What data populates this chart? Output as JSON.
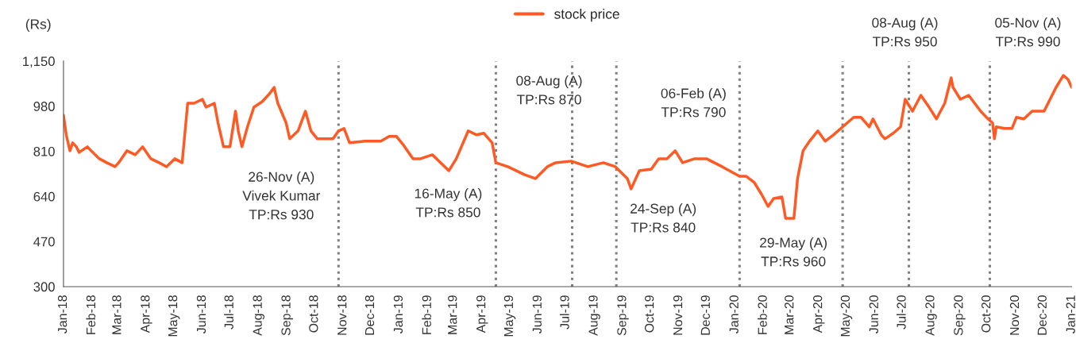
{
  "chart_data": {
    "type": "line",
    "ylabel": "(Rs)",
    "legend": "top",
    "grid": false,
    "line_style": "solid",
    "marker": "none",
    "xlim": [
      "2018-01-01",
      "2021-01-01"
    ],
    "xticks": [
      {
        "value": "2018-01-01",
        "label": "Jan-18"
      },
      {
        "value": "2018-02-01",
        "label": "Feb-18"
      },
      {
        "value": "2018-03-01",
        "label": "Mar-18"
      },
      {
        "value": "2018-04-01",
        "label": "Apr-18"
      },
      {
        "value": "2018-05-01",
        "label": "May-18"
      },
      {
        "value": "2018-06-01",
        "label": "Jun-18"
      },
      {
        "value": "2018-07-01",
        "label": "Jul-18"
      },
      {
        "value": "2018-08-01",
        "label": "Aug-18"
      },
      {
        "value": "2018-09-01",
        "label": "Sep-18"
      },
      {
        "value": "2018-10-01",
        "label": "Oct-18"
      },
      {
        "value": "2018-11-01",
        "label": "Nov-18"
      },
      {
        "value": "2018-12-01",
        "label": "Dec-18"
      },
      {
        "value": "2019-01-01",
        "label": "Jan-19"
      },
      {
        "value": "2019-02-01",
        "label": "Feb-19"
      },
      {
        "value": "2019-03-01",
        "label": "Mar-19"
      },
      {
        "value": "2019-04-01",
        "label": "Apr-19"
      },
      {
        "value": "2019-05-01",
        "label": "May-19"
      },
      {
        "value": "2019-06-01",
        "label": "Jun-19"
      },
      {
        "value": "2019-07-01",
        "label": "Jul-19"
      },
      {
        "value": "2019-08-01",
        "label": "Aug-19"
      },
      {
        "value": "2019-09-01",
        "label": "Sep-19"
      },
      {
        "value": "2019-10-01",
        "label": "Oct-19"
      },
      {
        "value": "2019-11-01",
        "label": "Nov-19"
      },
      {
        "value": "2019-12-01",
        "label": "Dec-19"
      },
      {
        "value": "2020-01-01",
        "label": "Jan-20"
      },
      {
        "value": "2020-02-01",
        "label": "Feb-20"
      },
      {
        "value": "2020-03-01",
        "label": "Mar-20"
      },
      {
        "value": "2020-04-01",
        "label": "Apr-20"
      },
      {
        "value": "2020-05-01",
        "label": "May-20"
      },
      {
        "value": "2020-06-01",
        "label": "Jun-20"
      },
      {
        "value": "2020-07-01",
        "label": "Jul-20"
      },
      {
        "value": "2020-08-01",
        "label": "Aug-20"
      },
      {
        "value": "2020-09-01",
        "label": "Sep-20"
      },
      {
        "value": "2020-10-01",
        "label": "Oct-20"
      },
      {
        "value": "2020-11-01",
        "label": "Nov-20"
      },
      {
        "value": "2020-12-01",
        "label": "Dec-20"
      },
      {
        "value": "2021-01-01",
        "label": "Jan-21"
      }
    ],
    "ylim": [
      300,
      1150
    ],
    "yticks": [
      300,
      470,
      640,
      810,
      980,
      {
        "value": 1150,
        "label": "1,150"
      }
    ],
    "series": [
      {
        "name": "stock price",
        "color": "#ff5a24",
        "x": [
          "2018-01-01",
          "2018-01-04",
          "2018-01-08",
          "2018-01-11",
          "2018-01-15",
          "2018-01-18",
          "2018-01-27",
          "2018-01-31",
          "2018-02-09",
          "2018-02-17",
          "2018-02-26",
          "2018-03-02",
          "2018-03-11",
          "2018-03-20",
          "2018-03-28",
          "2018-04-06",
          "2018-04-15",
          "2018-04-23",
          "2018-05-02",
          "2018-05-10",
          "2018-05-16",
          "2018-05-23",
          "2018-06-01",
          "2018-06-05",
          "2018-06-14",
          "2018-06-18",
          "2018-06-24",
          "2018-07-01",
          "2018-07-07",
          "2018-07-10",
          "2018-07-14",
          "2018-07-20",
          "2018-07-27",
          "2018-08-05",
          "2018-08-13",
          "2018-08-18",
          "2018-08-22",
          "2018-08-31",
          "2018-09-04",
          "2018-09-13",
          "2018-09-21",
          "2018-09-27",
          "2018-10-04",
          "2018-10-21",
          "2018-10-27",
          "2018-11-02",
          "2018-11-08",
          "2018-11-25",
          "2018-12-12",
          "2018-12-21",
          "2018-12-29",
          "2019-01-05",
          "2019-01-16",
          "2019-01-24",
          "2019-02-06",
          "2019-02-15",
          "2019-02-24",
          "2019-03-04",
          "2019-03-17",
          "2019-03-26",
          "2019-04-03",
          "2019-04-12",
          "2019-04-16",
          "2019-04-29",
          "2019-05-17",
          "2019-05-29",
          "2019-06-11",
          "2019-06-20",
          "2019-07-07",
          "2019-07-25",
          "2019-08-11",
          "2019-08-24",
          "2019-09-06",
          "2019-09-10",
          "2019-09-19",
          "2019-10-02",
          "2019-10-10",
          "2019-10-19",
          "2019-10-28",
          "2019-11-05",
          "2019-11-18",
          "2019-12-01",
          "2019-12-18",
          "2020-01-06",
          "2020-01-13",
          "2020-01-22",
          "2020-01-30",
          "2020-02-06",
          "2020-02-12",
          "2020-02-21",
          "2020-02-25",
          "2020-03-05",
          "2020-03-09",
          "2020-03-15",
          "2020-03-22",
          "2020-03-31",
          "2020-04-08",
          "2020-04-17",
          "2020-04-27",
          "2020-05-09",
          "2020-05-17",
          "2020-05-26",
          "2020-05-30",
          "2020-06-08",
          "2020-06-12",
          "2020-06-21",
          "2020-06-29",
          "2020-07-04",
          "2020-07-12",
          "2020-07-21",
          "2020-07-30",
          "2020-08-07",
          "2020-08-16",
          "2020-08-23",
          "2020-08-25",
          "2020-09-02",
          "2020-09-11",
          "2020-09-24",
          "2020-10-02",
          "2020-10-07",
          "2020-10-09",
          "2020-10-11",
          "2020-10-20",
          "2020-10-28",
          "2020-11-02",
          "2020-11-10",
          "2020-11-19",
          "2020-12-02",
          "2020-12-15",
          "2020-12-23",
          "2020-12-28",
          "2021-01-01"
        ],
        "values": [
          946,
          872,
          812,
          842,
          827,
          806,
          827,
          812,
          782,
          767,
          752,
          767,
          812,
          797,
          827,
          782,
          767,
          752,
          782,
          767,
          991,
          991,
          1006,
          976,
          991,
          917,
          827,
          827,
          961,
          887,
          827,
          902,
          976,
          997,
          1027,
          1051,
          991,
          917,
          857,
          887,
          961,
          887,
          857,
          857,
          887,
          896,
          842,
          848,
          848,
          866,
          866,
          836,
          782,
          782,
          797,
          767,
          737,
          782,
          887,
          872,
          878,
          842,
          767,
          752,
          722,
          707,
          752,
          767,
          773,
          752,
          767,
          752,
          707,
          668,
          737,
          743,
          782,
          782,
          812,
          767,
          782,
          782,
          752,
          716,
          716,
          692,
          647,
          602,
          632,
          638,
          557,
          557,
          707,
          812,
          848,
          887,
          848,
          872,
          902,
          938,
          938,
          902,
          932,
          872,
          857,
          878,
          902,
          1006,
          961,
          1021,
          976,
          932,
          991,
          1087,
          1051,
          1006,
          1021,
          961,
          932,
          917,
          857,
          902,
          896,
          896,
          938,
          932,
          961,
          961,
          1051,
          1096,
          1081,
          1051
        ]
      }
    ],
    "ref_lines": [
      {
        "axis": "x",
        "value": "2018-10-27",
        "color": "#808080",
        "line_style": "dotted",
        "label": "26-Nov (A)\nVivek Kumar\nTP:Rs 930"
      },
      {
        "axis": "x",
        "value": "2019-04-16",
        "color": "#808080",
        "line_style": "dotted",
        "label": "16-May (A)\nTP:Rs 850"
      },
      {
        "axis": "x",
        "value": "2019-07-08",
        "color": "#808080",
        "line_style": "dotted",
        "label": "08-Aug (A)\nTP:Rs 870"
      },
      {
        "axis": "x",
        "value": "2019-08-25",
        "color": "#808080",
        "line_style": "dotted",
        "label": "24-Sep (A)\nTP:Rs 840"
      },
      {
        "axis": "x",
        "value": "2020-01-06",
        "color": "#808080",
        "line_style": "dotted",
        "label": "06-Feb (A)\nTP:Rs 790"
      },
      {
        "axis": "x",
        "value": "2020-04-27",
        "color": "#808080",
        "line_style": "dotted",
        "label": "29-May (A)\nTP:Rs 960"
      },
      {
        "axis": "x",
        "value": "2020-07-08",
        "color": "#808080",
        "line_style": "dotted",
        "label": "08-Aug (A)\nTP:Rs 950"
      },
      {
        "axis": "x",
        "value": "2020-10-04",
        "color": "#808080",
        "line_style": "dotted",
        "label": "05-Nov (A)\nTP:Rs 990"
      }
    ]
  }
}
